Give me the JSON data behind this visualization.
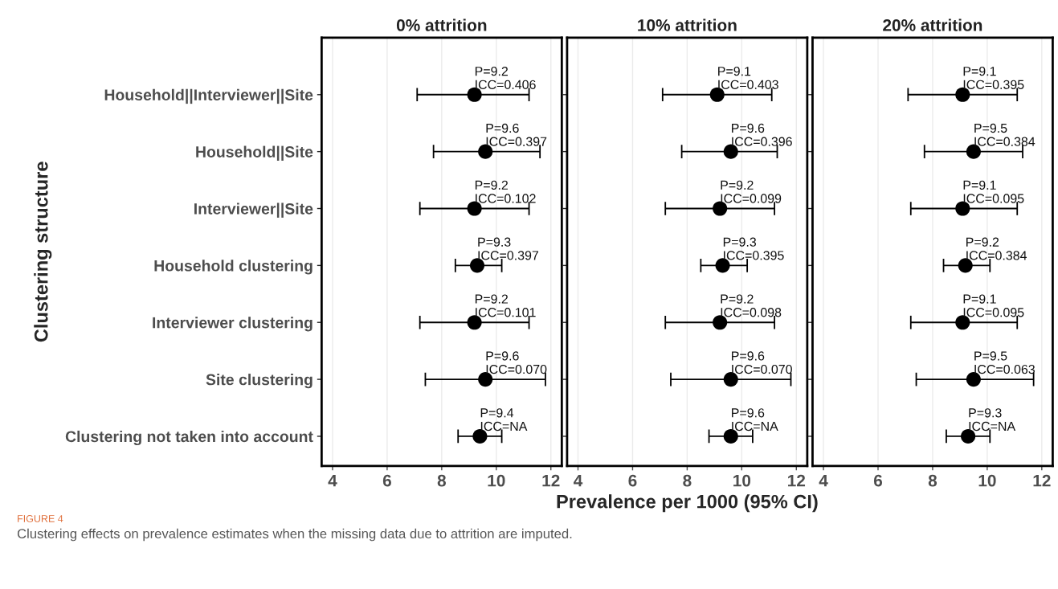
{
  "chart_data": [
    {
      "type": "scatter",
      "orientation": "horizontal",
      "title": "0% attrition",
      "ylabel": "Clustering structure",
      "categories": [
        "Household||Interviewer||Site",
        "Household||Site",
        "Interviewer||Site",
        "Household clustering",
        "Interviewer clustering",
        "Site clustering",
        "Clustering not taken into account"
      ],
      "series": [
        {
          "color": "#000000",
          "values": [
            9.2,
            9.6,
            9.2,
            9.3,
            9.2,
            9.6,
            9.4
          ],
          "errors": [
            [
              7.1,
              11.2
            ],
            [
              7.7,
              11.6
            ],
            [
              7.2,
              11.2
            ],
            [
              8.5,
              10.2
            ],
            [
              7.2,
              11.2
            ],
            [
              7.4,
              11.8
            ],
            [
              8.6,
              10.2
            ]
          ]
        }
      ],
      "xlim": [
        3.6,
        12.4
      ],
      "xticks": [
        4,
        6,
        8,
        10,
        12
      ],
      "grid": "x",
      "marker": "circle",
      "annotations": [
        {
          "text": "P=9.2",
          "x": 9.2,
          "y": "Household||Interviewer||Site"
        },
        {
          "text": "ICC=0.406",
          "x": 9.2,
          "y": "Household||Interviewer||Site"
        },
        {
          "text": "P=9.6",
          "x": 9.6,
          "y": "Household||Site"
        },
        {
          "text": "ICC=0.397",
          "x": 9.6,
          "y": "Household||Site"
        },
        {
          "text": "P=9.2",
          "x": 9.2,
          "y": "Interviewer||Site"
        },
        {
          "text": "ICC=0.102",
          "x": 9.2,
          "y": "Interviewer||Site"
        },
        {
          "text": "P=9.3",
          "x": 9.3,
          "y": "Household clustering"
        },
        {
          "text": "ICC=0.397",
          "x": 9.3,
          "y": "Household clustering"
        },
        {
          "text": "P=9.2",
          "x": 9.2,
          "y": "Interviewer clustering"
        },
        {
          "text": "ICC=0.101",
          "x": 9.2,
          "y": "Interviewer clustering"
        },
        {
          "text": "P=9.6",
          "x": 9.6,
          "y": "Site clustering"
        },
        {
          "text": "ICC=0.070",
          "x": 9.6,
          "y": "Site clustering"
        },
        {
          "text": "P=9.4",
          "x": 9.4,
          "y": "Clustering not taken into account"
        },
        {
          "text": "ICC=NA",
          "x": 9.4,
          "y": "Clustering not taken into account"
        },
        "FIGURE 4",
        "Clustering effects on prevalence estimates when the missing data due to attrition are imputed."
      ]
    },
    {
      "type": "scatter",
      "orientation": "horizontal",
      "title": "10% attrition",
      "xlabel": "Prevalence per 1000 (95% CI)",
      "tick_labels": "x",
      "categories": [
        "Household||Interviewer||Site",
        "Household||Site",
        "Interviewer||Site",
        "Household clustering",
        "Interviewer clustering",
        "Site clustering",
        "Clustering not taken into account"
      ],
      "series": [
        {
          "color": "#000000",
          "values": [
            9.1,
            9.6,
            9.2,
            9.3,
            9.2,
            9.6,
            9.6
          ],
          "errors": [
            [
              7.1,
              11.1
            ],
            [
              7.8,
              11.3
            ],
            [
              7.2,
              11.2
            ],
            [
              8.5,
              10.2
            ],
            [
              7.2,
              11.2
            ],
            [
              7.4,
              11.8
            ],
            [
              8.8,
              10.4
            ]
          ]
        }
      ],
      "xlim": [
        3.6,
        12.4
      ],
      "xticks": [
        4,
        6,
        8,
        10,
        12
      ],
      "grid": "x",
      "marker": "circle",
      "annotations": [
        {
          "text": "P=9.1",
          "x": 9.1,
          "y": "Household||Interviewer||Site"
        },
        {
          "text": "ICC=0.403",
          "x": 9.1,
          "y": "Household||Interviewer||Site"
        },
        {
          "text": "P=9.6",
          "x": 9.6,
          "y": "Household||Site"
        },
        {
          "text": "ICC=0.396",
          "x": 9.6,
          "y": "Household||Site"
        },
        {
          "text": "P=9.2",
          "x": 9.2,
          "y": "Interviewer||Site"
        },
        {
          "text": "ICC=0.099",
          "x": 9.2,
          "y": "Interviewer||Site"
        },
        {
          "text": "P=9.3",
          "x": 9.3,
          "y": "Household clustering"
        },
        {
          "text": "ICC=0.395",
          "x": 9.3,
          "y": "Household clustering"
        },
        {
          "text": "P=9.2",
          "x": 9.2,
          "y": "Interviewer clustering"
        },
        {
          "text": "ICC=0.098",
          "x": 9.2,
          "y": "Interviewer clustering"
        },
        {
          "text": "P=9.6",
          "x": 9.6,
          "y": "Site clustering"
        },
        {
          "text": "ICC=0.070",
          "x": 9.6,
          "y": "Site clustering"
        },
        {
          "text": "P=9.6",
          "x": 9.6,
          "y": "Clustering not taken into account"
        },
        {
          "text": "ICC=NA",
          "x": 9.6,
          "y": "Clustering not taken into account"
        }
      ]
    },
    {
      "type": "scatter",
      "orientation": "horizontal",
      "title": "20% attrition",
      "tick_labels": "x",
      "categories": [
        "Household||Interviewer||Site",
        "Household||Site",
        "Interviewer||Site",
        "Household clustering",
        "Interviewer clustering",
        "Site clustering",
        "Clustering not taken into account"
      ],
      "series": [
        {
          "color": "#000000",
          "values": [
            9.1,
            9.5,
            9.1,
            9.2,
            9.1,
            9.5,
            9.3
          ],
          "errors": [
            [
              7.1,
              11.1
            ],
            [
              7.7,
              11.3
            ],
            [
              7.2,
              11.1
            ],
            [
              8.4,
              10.1
            ],
            [
              7.2,
              11.1
            ],
            [
              7.4,
              11.7
            ],
            [
              8.5,
              10.1
            ]
          ]
        }
      ],
      "xlim": [
        3.6,
        12.4
      ],
      "xticks": [
        4,
        6,
        8,
        10,
        12
      ],
      "grid": "x",
      "marker": "circle",
      "annotations": [
        {
          "text": "P=9.1",
          "x": 9.1,
          "y": "Household||Interviewer||Site"
        },
        {
          "text": "ICC=0.395",
          "x": 9.1,
          "y": "Household||Interviewer||Site"
        },
        {
          "text": "P=9.5",
          "x": 9.5,
          "y": "Household||Site"
        },
        {
          "text": "ICC=0.384",
          "x": 9.5,
          "y": "Household||Site"
        },
        {
          "text": "P=9.1",
          "x": 9.1,
          "y": "Interviewer||Site"
        },
        {
          "text": "ICC=0.095",
          "x": 9.1,
          "y": "Interviewer||Site"
        },
        {
          "text": "P=9.2",
          "x": 9.2,
          "y": "Household clustering"
        },
        {
          "text": "ICC=0.384",
          "x": 9.2,
          "y": "Household clustering"
        },
        {
          "text": "P=9.1",
          "x": 9.1,
          "y": "Interviewer clustering"
        },
        {
          "text": "ICC=0.095",
          "x": 9.1,
          "y": "Interviewer clustering"
        },
        {
          "text": "P=9.5",
          "x": 9.5,
          "y": "Site clustering"
        },
        {
          "text": "ICC=0.063",
          "x": 9.5,
          "y": "Site clustering"
        },
        {
          "text": "P=9.3",
          "x": 9.3,
          "y": "Clustering not taken into account"
        },
        {
          "text": "ICC=NA",
          "x": 9.3,
          "y": "Clustering not taken into account"
        }
      ]
    }
  ]
}
